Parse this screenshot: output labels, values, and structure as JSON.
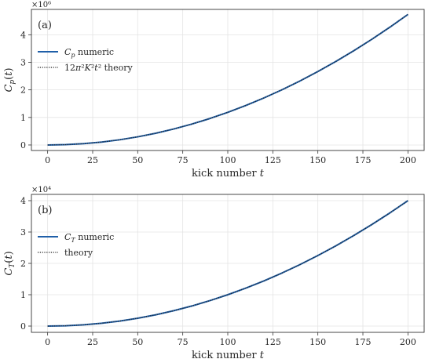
{
  "chart_data": [
    {
      "type": "line",
      "panel_label": "(a)",
      "xlabel": "kick number",
      "xlabel_var": "t",
      "ylabel": "C_p(t)",
      "offset_label": "×10⁶",
      "offset_base": 1000000,
      "xlim": [
        -9,
        209
      ],
      "ylim": [
        -0.2,
        4.92
      ],
      "xticks": [
        0,
        25,
        50,
        75,
        100,
        125,
        150,
        175,
        200
      ],
      "yticks": [
        0,
        1,
        2,
        3,
        4
      ],
      "grid": true,
      "legend_position": "upper-left",
      "series": [
        {
          "name": "C_p numeric",
          "label_var": "C",
          "label_sub": "p",
          "label_rest": " numeric",
          "style": "solid",
          "color": "#1f5fa8",
          "x": [
            0,
            10,
            20,
            30,
            40,
            50,
            60,
            70,
            80,
            90,
            100,
            110,
            120,
            130,
            140,
            150,
            160,
            170,
            180,
            190,
            200
          ],
          "y": [
            0,
            0.0119,
            0.0474,
            0.1066,
            0.1895,
            0.2961,
            0.4264,
            0.5804,
            0.758,
            0.9594,
            1.1844,
            1.4332,
            1.7056,
            2.0017,
            2.3215,
            2.665,
            3.0322,
            3.423,
            3.8376,
            4.2759,
            4.7376
          ]
        },
        {
          "name": "12π²K²t² theory",
          "label_math": "12π²K²t²",
          "label_rest": " theory",
          "style": "dotted",
          "color": "#222222",
          "x": [
            0,
            10,
            20,
            30,
            40,
            50,
            60,
            70,
            80,
            90,
            100,
            110,
            120,
            130,
            140,
            150,
            160,
            170,
            180,
            190,
            200
          ],
          "y": [
            0,
            0.0118,
            0.0474,
            0.1066,
            0.1895,
            0.2961,
            0.4264,
            0.5804,
            0.758,
            0.9594,
            1.1844,
            1.4332,
            1.7056,
            2.0017,
            2.3215,
            2.665,
            3.0322,
            3.423,
            3.8376,
            4.2759,
            4.7376
          ]
        }
      ]
    },
    {
      "type": "line",
      "panel_label": "(b)",
      "xlabel": "kick number",
      "xlabel_var": "t",
      "ylabel": "C_T(t)",
      "offset_label": "×10⁴",
      "offset_base": 10000,
      "xlim": [
        -9,
        209
      ],
      "ylim": [
        -0.2,
        4.2
      ],
      "xticks": [
        0,
        25,
        50,
        75,
        100,
        125,
        150,
        175,
        200
      ],
      "yticks": [
        0,
        1,
        2,
        3,
        4
      ],
      "grid": true,
      "legend_position": "upper-left",
      "series": [
        {
          "name": "C_T numeric",
          "label_var": "C",
          "label_sub": "T",
          "label_rest": " numeric",
          "style": "solid",
          "color": "#1f5fa8",
          "x": [
            0,
            10,
            20,
            30,
            40,
            50,
            60,
            70,
            80,
            90,
            100,
            110,
            120,
            130,
            140,
            150,
            160,
            170,
            180,
            190,
            200
          ],
          "y": [
            0,
            0.01,
            0.04,
            0.09,
            0.16,
            0.25,
            0.36,
            0.49,
            0.64,
            0.81,
            1.0,
            1.21,
            1.44,
            1.69,
            1.96,
            2.25,
            2.56,
            2.89,
            3.24,
            3.61,
            4.0
          ]
        },
        {
          "name": "theory",
          "label_math": "",
          "label_rest": "theory",
          "style": "dotted",
          "color": "#222222",
          "x": [
            0,
            10,
            20,
            30,
            40,
            50,
            60,
            70,
            80,
            90,
            100,
            110,
            120,
            130,
            140,
            150,
            160,
            170,
            180,
            190,
            200
          ],
          "y": [
            0,
            0.01,
            0.04,
            0.09,
            0.16,
            0.25,
            0.36,
            0.49,
            0.64,
            0.81,
            1.0,
            1.21,
            1.44,
            1.69,
            1.96,
            2.25,
            2.56,
            2.89,
            3.24,
            3.61,
            4.0
          ]
        }
      ]
    }
  ]
}
